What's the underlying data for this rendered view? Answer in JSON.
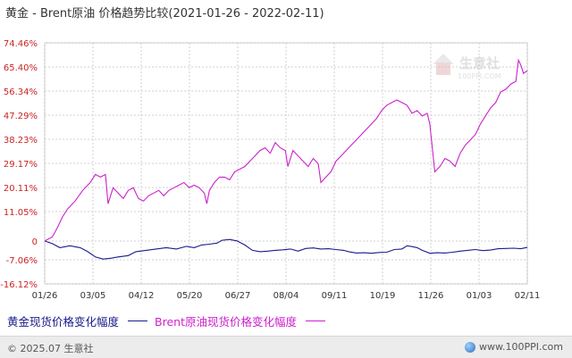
{
  "header": {
    "title": "黄金 - Brent原油 价格趋势比较(2021-01-26 - 2022-02-11)"
  },
  "watermark": {
    "name": "生意社",
    "url": "100PPI.COM"
  },
  "footer": {
    "copyright": "© 2025.07 生意社",
    "site": "www.100PPI.com"
  },
  "colors": {
    "gold": "#1a1a8c",
    "oil": "#cc22cc",
    "grid": "#d0d0d0"
  },
  "chart_data": {
    "type": "line",
    "title": "黄金 - Brent原油 价格趋势比较(2021-01-26 - 2022-02-11)",
    "xlabel": "",
    "ylabel": "",
    "x_ticks": [
      "01/26",
      "03/05",
      "04/12",
      "05/20",
      "06/27",
      "08/04",
      "09/11",
      "10/19",
      "11/26",
      "01/03",
      "02/11"
    ],
    "y_ticks": [
      "74.46%",
      "65.40%",
      "56.34%",
      "47.29%",
      "38.23%",
      "29.17%",
      "20.11%",
      "11.05%",
      "0",
      "-7.06%",
      "-16.12%"
    ],
    "y_tick_values": [
      74.46,
      65.4,
      56.34,
      47.29,
      38.23,
      29.17,
      20.11,
      11.05,
      0,
      -7.06,
      -16.12
    ],
    "ylim": [
      -16.12,
      74.46
    ],
    "xlim": [
      0,
      381
    ],
    "grid": true,
    "legend_position": "bottom",
    "series": [
      {
        "name": "黄金现货价格变化幅度",
        "color": "#1a1a8c",
        "points": [
          [
            0,
            0
          ],
          [
            6,
            -1
          ],
          [
            12,
            -2.5
          ],
          [
            20,
            -1.8
          ],
          [
            28,
            -2.5
          ],
          [
            34,
            -4
          ],
          [
            40,
            -6
          ],
          [
            46,
            -6.8
          ],
          [
            52,
            -6.5
          ],
          [
            58,
            -6
          ],
          [
            66,
            -5.5
          ],
          [
            72,
            -4
          ],
          [
            80,
            -3.5
          ],
          [
            88,
            -3
          ],
          [
            96,
            -2.5
          ],
          [
            104,
            -3
          ],
          [
            112,
            -2
          ],
          [
            118,
            -2.5
          ],
          [
            124,
            -1.5
          ],
          [
            130,
            -1.2
          ],
          [
            136,
            -0.8
          ],
          [
            140,
            0.3
          ],
          [
            146,
            0.6
          ],
          [
            152,
            0
          ],
          [
            158,
            -1.5
          ],
          [
            164,
            -3.5
          ],
          [
            170,
            -4
          ],
          [
            176,
            -3.8
          ],
          [
            182,
            -3.5
          ],
          [
            188,
            -3.3
          ],
          [
            194,
            -3
          ],
          [
            200,
            -3.8
          ],
          [
            206,
            -2.8
          ],
          [
            212,
            -2.6
          ],
          [
            218,
            -3
          ],
          [
            224,
            -2.9
          ],
          [
            230,
            -3.2
          ],
          [
            236,
            -3.5
          ],
          [
            240,
            -4
          ],
          [
            246,
            -4.5
          ],
          [
            252,
            -4.4
          ],
          [
            258,
            -4.6
          ],
          [
            264,
            -4.3
          ],
          [
            270,
            -4.2
          ],
          [
            276,
            -3.2
          ],
          [
            282,
            -3
          ],
          [
            286,
            -1.8
          ],
          [
            290,
            -2.1
          ],
          [
            294,
            -2.5
          ],
          [
            298,
            -3.5
          ],
          [
            304,
            -4.6
          ],
          [
            310,
            -4.4
          ],
          [
            316,
            -4.5
          ],
          [
            322,
            -4.2
          ],
          [
            328,
            -3.8
          ],
          [
            334,
            -3.5
          ],
          [
            340,
            -3.2
          ],
          [
            346,
            -3.6
          ],
          [
            352,
            -3.4
          ],
          [
            358,
            -2.9
          ],
          [
            364,
            -2.8
          ],
          [
            370,
            -2.7
          ],
          [
            376,
            -2.9
          ],
          [
            381,
            -2.4
          ]
        ]
      },
      {
        "name": "Brent原油现货价格变化幅度",
        "color": "#cc22cc",
        "points": [
          [
            0,
            0
          ],
          [
            6,
            1.5
          ],
          [
            10,
            5
          ],
          [
            14,
            9
          ],
          [
            18,
            12
          ],
          [
            24,
            15
          ],
          [
            30,
            19
          ],
          [
            36,
            22
          ],
          [
            40,
            25
          ],
          [
            44,
            24
          ],
          [
            48,
            25
          ],
          [
            50,
            14
          ],
          [
            54,
            20
          ],
          [
            58,
            18
          ],
          [
            62,
            16
          ],
          [
            66,
            19
          ],
          [
            70,
            20
          ],
          [
            74,
            16
          ],
          [
            78,
            15
          ],
          [
            82,
            17
          ],
          [
            86,
            18
          ],
          [
            90,
            19
          ],
          [
            94,
            17
          ],
          [
            98,
            19
          ],
          [
            102,
            20
          ],
          [
            106,
            21
          ],
          [
            110,
            22
          ],
          [
            114,
            20
          ],
          [
            118,
            21
          ],
          [
            122,
            20
          ],
          [
            126,
            18
          ],
          [
            128,
            14
          ],
          [
            130,
            19
          ],
          [
            134,
            22
          ],
          [
            138,
            24
          ],
          [
            142,
            24
          ],
          [
            146,
            23
          ],
          [
            150,
            26
          ],
          [
            154,
            27
          ],
          [
            158,
            28
          ],
          [
            162,
            30
          ],
          [
            166,
            32
          ],
          [
            170,
            34
          ],
          [
            174,
            35
          ],
          [
            178,
            33
          ],
          [
            182,
            37
          ],
          [
            186,
            35
          ],
          [
            190,
            34
          ],
          [
            192,
            28
          ],
          [
            196,
            34
          ],
          [
            200,
            32
          ],
          [
            204,
            30
          ],
          [
            208,
            28
          ],
          [
            212,
            31
          ],
          [
            216,
            29
          ],
          [
            218,
            22
          ],
          [
            222,
            24
          ],
          [
            226,
            26
          ],
          [
            230,
            30
          ],
          [
            234,
            32
          ],
          [
            238,
            34
          ],
          [
            242,
            36
          ],
          [
            246,
            38
          ],
          [
            250,
            40
          ],
          [
            254,
            42
          ],
          [
            258,
            44
          ],
          [
            262,
            46
          ],
          [
            266,
            49
          ],
          [
            270,
            51
          ],
          [
            274,
            52
          ],
          [
            278,
            53
          ],
          [
            282,
            52
          ],
          [
            286,
            51
          ],
          [
            290,
            48
          ],
          [
            294,
            49
          ],
          [
            298,
            47
          ],
          [
            302,
            48
          ],
          [
            304,
            44
          ],
          [
            306,
            35
          ],
          [
            308,
            26
          ],
          [
            312,
            28
          ],
          [
            316,
            31
          ],
          [
            320,
            30
          ],
          [
            324,
            28
          ],
          [
            328,
            33
          ],
          [
            332,
            36
          ],
          [
            336,
            38
          ],
          [
            340,
            40
          ],
          [
            344,
            44
          ],
          [
            348,
            47
          ],
          [
            352,
            50
          ],
          [
            356,
            52
          ],
          [
            360,
            56
          ],
          [
            364,
            57
          ],
          [
            368,
            59
          ],
          [
            372,
            60
          ],
          [
            374,
            68
          ],
          [
            376,
            66
          ],
          [
            378,
            63
          ],
          [
            381,
            64
          ]
        ]
      }
    ]
  }
}
